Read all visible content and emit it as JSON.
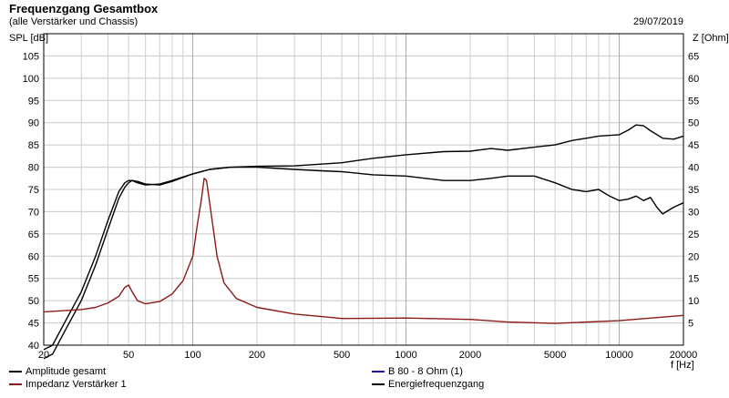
{
  "header": {
    "title": "Frequenzgang Gesamtbox",
    "subtitle": "(alle Verstärker und Chassis)",
    "date": "29/07/2019"
  },
  "chart_data": {
    "type": "line",
    "title": "Frequenzgang Gesamtbox",
    "subtitle": "(alle Verstärker und Chassis)",
    "xlabel": "f [Hz]",
    "ylabel": "SPL [dB]",
    "y2label": "Z [Ohm]",
    "xscale": "log",
    "xlim": [
      20,
      20000
    ],
    "ylim": [
      40,
      110
    ],
    "y2lim": [
      0,
      70
    ],
    "grid": true,
    "x_ticks": [
      "20",
      "50",
      "100",
      "200",
      "500",
      "1000",
      "2000",
      "5000",
      "10000",
      "20000"
    ],
    "x_tick_values": [
      20,
      50,
      100,
      200,
      500,
      1000,
      2000,
      5000,
      10000,
      20000
    ],
    "y_ticks": [
      "40",
      "45",
      "50",
      "55",
      "60",
      "65",
      "70",
      "75",
      "80",
      "85",
      "90",
      "95",
      "100",
      "105"
    ],
    "y2_ticks": [
      "5",
      "10",
      "15",
      "20",
      "25",
      "30",
      "35",
      "40",
      "45",
      "50",
      "55",
      "60",
      "65"
    ],
    "series": [
      {
        "name": "Amplitude gesamt",
        "color": "#000000",
        "axis": "left",
        "x": [
          20,
          22,
          25,
          30,
          35,
          40,
          45,
          48,
          50,
          52,
          55,
          60,
          70,
          80,
          100,
          120,
          150,
          200,
          300,
          400,
          500,
          700,
          1000,
          1500,
          2000,
          2500,
          3000,
          4000,
          5000,
          6000,
          7000,
          8000,
          10000,
          11000,
          12000,
          13000,
          14000,
          16000,
          18000,
          20000
        ],
        "y": [
          39,
          40,
          45,
          52,
          60,
          68,
          74.5,
          76.5,
          77,
          77,
          76.5,
          76,
          76.2,
          77,
          78.5,
          79.5,
          80,
          80.2,
          80.3,
          80.7,
          81,
          82,
          82.8,
          83.5,
          83.6,
          84.2,
          83.8,
          84.5,
          85,
          86,
          86.5,
          87,
          87.3,
          88.3,
          89.5,
          89.3,
          88.2,
          86.5,
          86.3,
          87
        ]
      },
      {
        "name": "Energiefrequenzgang",
        "color": "#000000",
        "axis": "left",
        "x": [
          20,
          22,
          25,
          30,
          35,
          40,
          45,
          48,
          50,
          52,
          55,
          60,
          70,
          80,
          100,
          120,
          150,
          200,
          300,
          400,
          500,
          700,
          1000,
          1500,
          2000,
          2500,
          3000,
          4000,
          5000,
          6000,
          7000,
          8000,
          9000,
          10000,
          11000,
          12000,
          13000,
          14000,
          15000,
          16000,
          18000,
          20000
        ],
        "y": [
          37,
          38,
          43,
          50,
          58,
          66,
          73,
          75.5,
          76.5,
          77,
          76.8,
          76.2,
          76,
          76.8,
          78.5,
          79.5,
          80,
          80,
          79.5,
          79.2,
          79,
          78.3,
          78,
          77,
          77,
          77.5,
          78,
          78,
          76.5,
          75,
          74.5,
          75,
          73.5,
          72.5,
          72.8,
          73.5,
          72.5,
          73.2,
          71,
          69.5,
          71,
          72
        ]
      },
      {
        "name": "Impedanz Verstärker 1",
        "color": "#8b1a1a",
        "axis": "right",
        "x": [
          20,
          30,
          35,
          40,
          45,
          48,
          50,
          52,
          55,
          60,
          70,
          80,
          90,
          100,
          105,
          110,
          113,
          116,
          120,
          130,
          140,
          160,
          200,
          300,
          500,
          1000,
          2000,
          3000,
          5000,
          10000,
          20000
        ],
        "y": [
          7.5,
          8,
          8.5,
          9.5,
          11,
          13,
          13.5,
          12,
          10,
          9.3,
          9.8,
          11.5,
          14.5,
          20,
          27,
          33,
          37.5,
          37,
          32,
          20,
          14,
          10.5,
          8.5,
          7,
          6,
          6.1,
          5.8,
          5.2,
          4.9,
          5.5,
          6.7
        ]
      }
    ],
    "legend": [
      {
        "label": "Amplitude gesamt",
        "color": "#000000"
      },
      {
        "label": "Impedanz Verstärker 1",
        "color": "#8b1a1a"
      },
      {
        "label": "B 80 - 8 Ohm (1)",
        "color": "#1a1a9a"
      },
      {
        "label": "Energiefrequenzgang",
        "color": "#000000"
      }
    ]
  }
}
